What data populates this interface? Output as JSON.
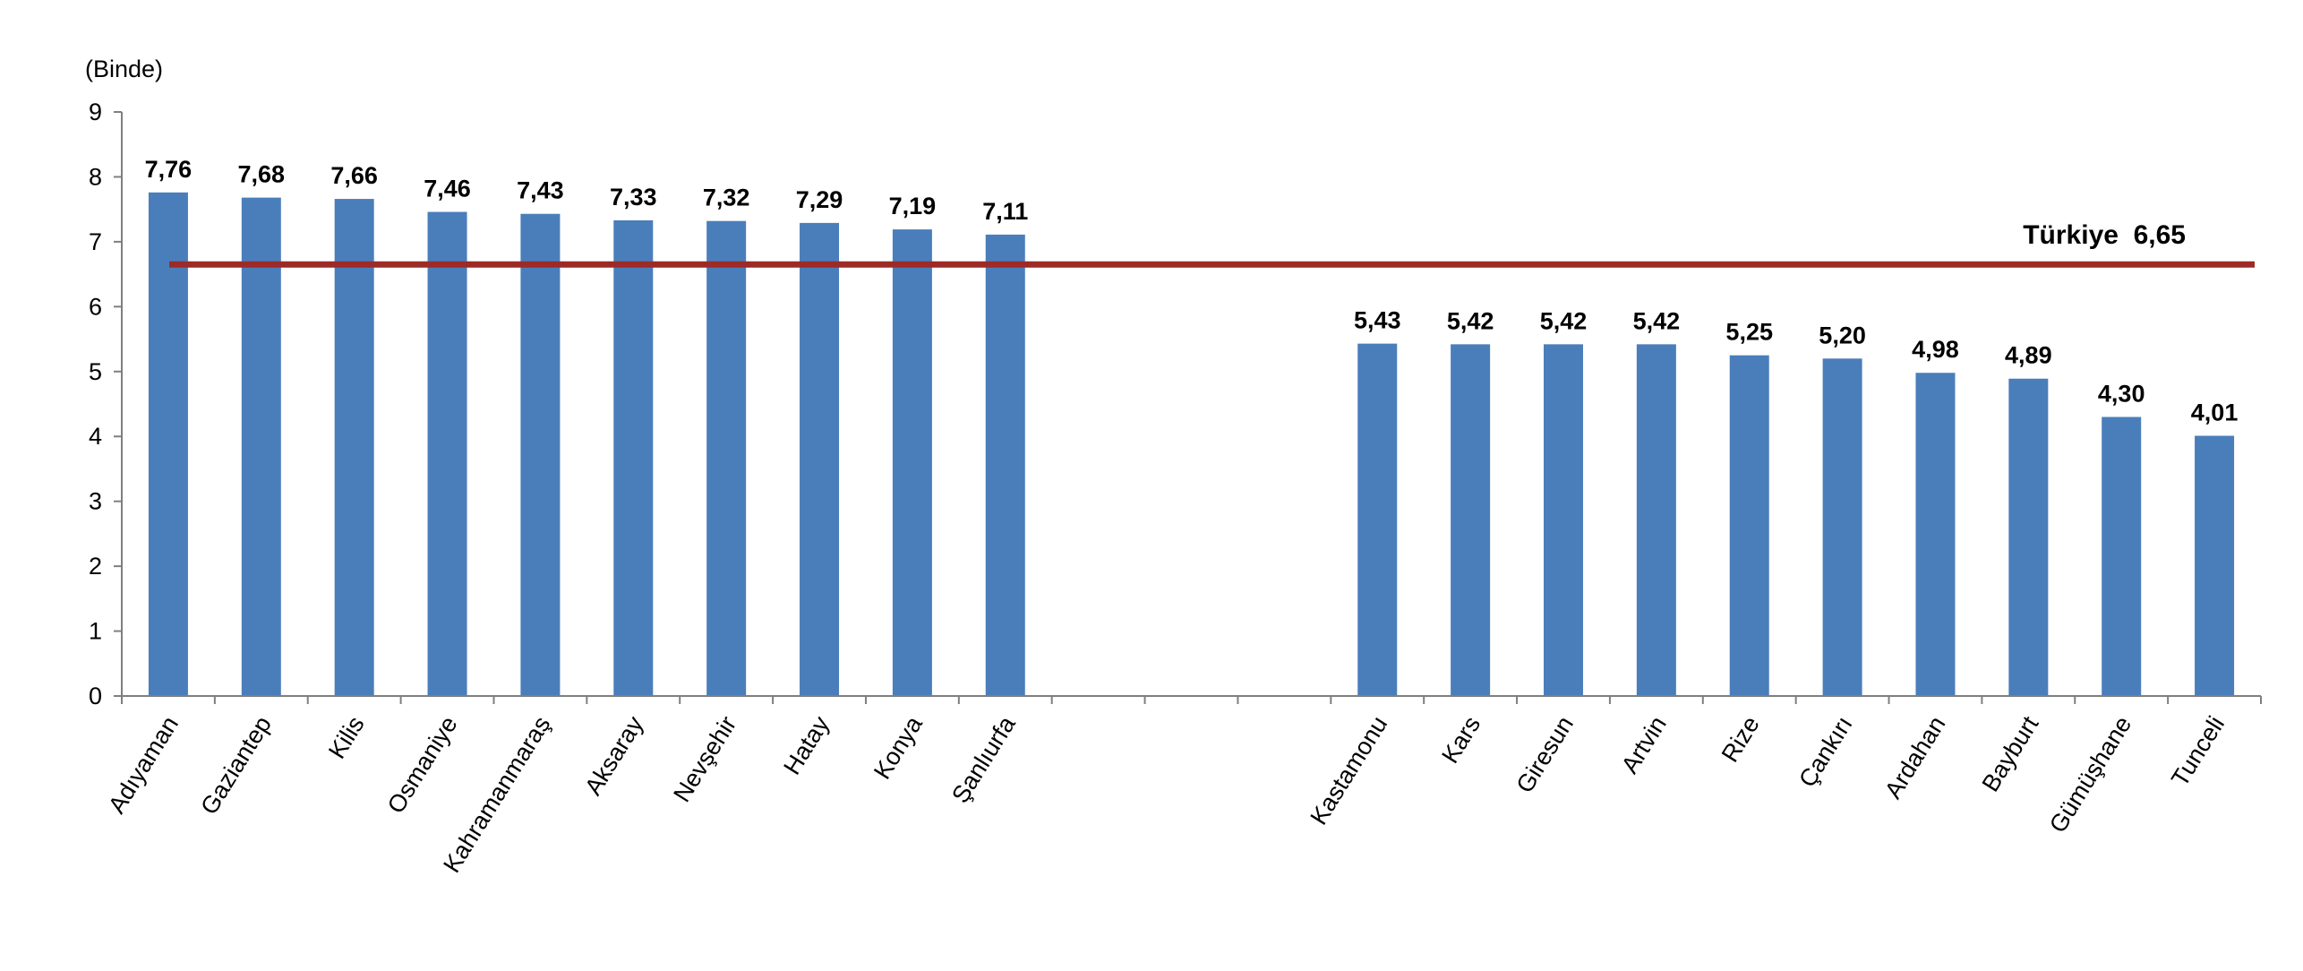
{
  "chart_data": {
    "type": "bar",
    "unit_label": "(Binde)",
    "categories": [
      "Adıyaman",
      "Gaziantep",
      "Kilis",
      "Osmaniye",
      "Kahramanmaraş",
      "Aksaray",
      "Nevşehir",
      "Hatay",
      "Konya",
      "Şanlıurfa",
      "",
      "",
      "",
      "Kastamonu",
      "Kars",
      "Giresun",
      "Artvin",
      "Rize",
      "Çankırı",
      "Ardahan",
      "Bayburt",
      "Gümüşhane",
      "Tunceli"
    ],
    "values": [
      7.76,
      7.68,
      7.66,
      7.46,
      7.43,
      7.33,
      7.32,
      7.29,
      7.19,
      7.11,
      null,
      null,
      null,
      5.43,
      5.42,
      5.42,
      5.42,
      5.25,
      5.2,
      4.98,
      4.89,
      4.3,
      4.01
    ],
    "value_labels": [
      "7,76",
      "7,68",
      "7,66",
      "7,46",
      "7,43",
      "7,33",
      "7,32",
      "7,29",
      "7,19",
      "7,11",
      "",
      "",
      "",
      "5,43",
      "5,42",
      "5,42",
      "5,42",
      "5,25",
      "5,20",
      "4,98",
      "4,89",
      "4,30",
      "4,01"
    ],
    "ylim": [
      0,
      9
    ],
    "yticks": [
      "0",
      "1",
      "2",
      "3",
      "4",
      "5",
      "6",
      "7",
      "8",
      "9"
    ],
    "reference_line": {
      "name": "Türkiye",
      "value": 6.65,
      "label": "Türkiye  6,65",
      "color": "#9C2A26"
    },
    "bar_color": "#4A7EBB",
    "grid": false,
    "legend": "none"
  }
}
